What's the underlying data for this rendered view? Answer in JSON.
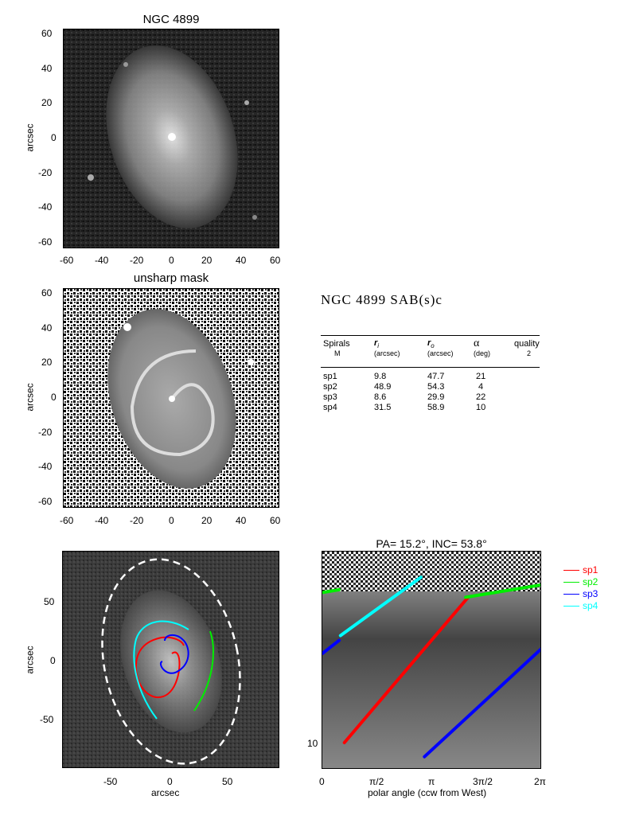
{
  "panel1": {
    "title": "NGC 4899",
    "ylabel": "arcsec",
    "xticks": [
      "-60",
      "-40",
      "-20",
      "0",
      "20",
      "40",
      "60"
    ],
    "yticks": [
      "60",
      "40",
      "20",
      "0",
      "-20",
      "-40",
      "-60"
    ]
  },
  "panel2": {
    "title": "unsharp mask",
    "ylabel": "arcsec",
    "xticks": [
      "-60",
      "-40",
      "-20",
      "0",
      "20",
      "40",
      "60"
    ],
    "yticks": [
      "60",
      "40",
      "20",
      "0",
      "-20",
      "-40",
      "-60"
    ]
  },
  "params": {
    "galaxy_title": "NGC 4899  SAB(s)c",
    "headers": {
      "col1": "Spirals",
      "col1_sub": "M",
      "col2": "r",
      "col2_subscript": "i",
      "col2_sub": "(arcsec)",
      "col3": "r",
      "col3_subscript": "o",
      "col3_sub": "(arcsec)",
      "col4": "α",
      "col4_sub": "(deg)",
      "col5": "quality",
      "col5_sub": "2"
    },
    "rows": [
      {
        "name": "sp1",
        "ri": "9.8",
        "ro": "47.7",
        "alpha": "21"
      },
      {
        "name": "sp2",
        "ri": "48.9",
        "ro": "54.3",
        "alpha": "4"
      },
      {
        "name": "sp3",
        "ri": "8.6",
        "ro": "29.9",
        "alpha": "22"
      },
      {
        "name": "sp4",
        "ri": "31.5",
        "ro": "58.9",
        "alpha": "10"
      }
    ]
  },
  "panel3": {
    "ylabel": "arcsec",
    "xlabel": "arcsec",
    "xticks": [
      "-50",
      "0",
      "50"
    ],
    "yticks": [
      "50",
      "0",
      "-50"
    ]
  },
  "panel4": {
    "title": "PA=  15.2°, INC=  53.8°",
    "xlabel": "polar angle (ccw from West)",
    "xticks": [
      "0",
      "π/2",
      "π",
      "3π/2",
      "2π"
    ],
    "yticks": [
      "10"
    ]
  },
  "legend": [
    {
      "name": "sp1",
      "color": "#ff0000"
    },
    {
      "name": "sp2",
      "color": "#00ee00"
    },
    {
      "name": "sp3",
      "color": "#0000ff"
    },
    {
      "name": "sp4",
      "color": "#00ffff"
    }
  ],
  "chart_data": [
    {
      "type": "line",
      "title": "PA=  15.2°, INC=  53.8°",
      "xlabel": "polar angle (ccw from West)",
      "ylabel": "",
      "xlim": [
        0,
        6.2832
      ],
      "log_y": true,
      "series": [
        {
          "name": "sp1",
          "color": "#ff0000",
          "x": [
            0.63,
            4.18
          ],
          "y": [
            10.0,
            47.7
          ]
        },
        {
          "name": "sp2",
          "color": "#00ee00",
          "x": [
            0.0,
            0.48,
            4.1,
            6.28
          ],
          "y": [
            50.0,
            51.5,
            47.5,
            54.3
          ]
        },
        {
          "name": "sp3",
          "color": "#0000ff",
          "x": [
            0.0,
            0.48,
            2.92,
            6.28
          ],
          "y": [
            26.0,
            29.9,
            8.6,
            27.5
          ]
        },
        {
          "name": "sp4",
          "color": "#00ffff",
          "x": [
            0.52,
            2.82
          ],
          "y": [
            31.5,
            58.9
          ]
        }
      ]
    }
  ]
}
